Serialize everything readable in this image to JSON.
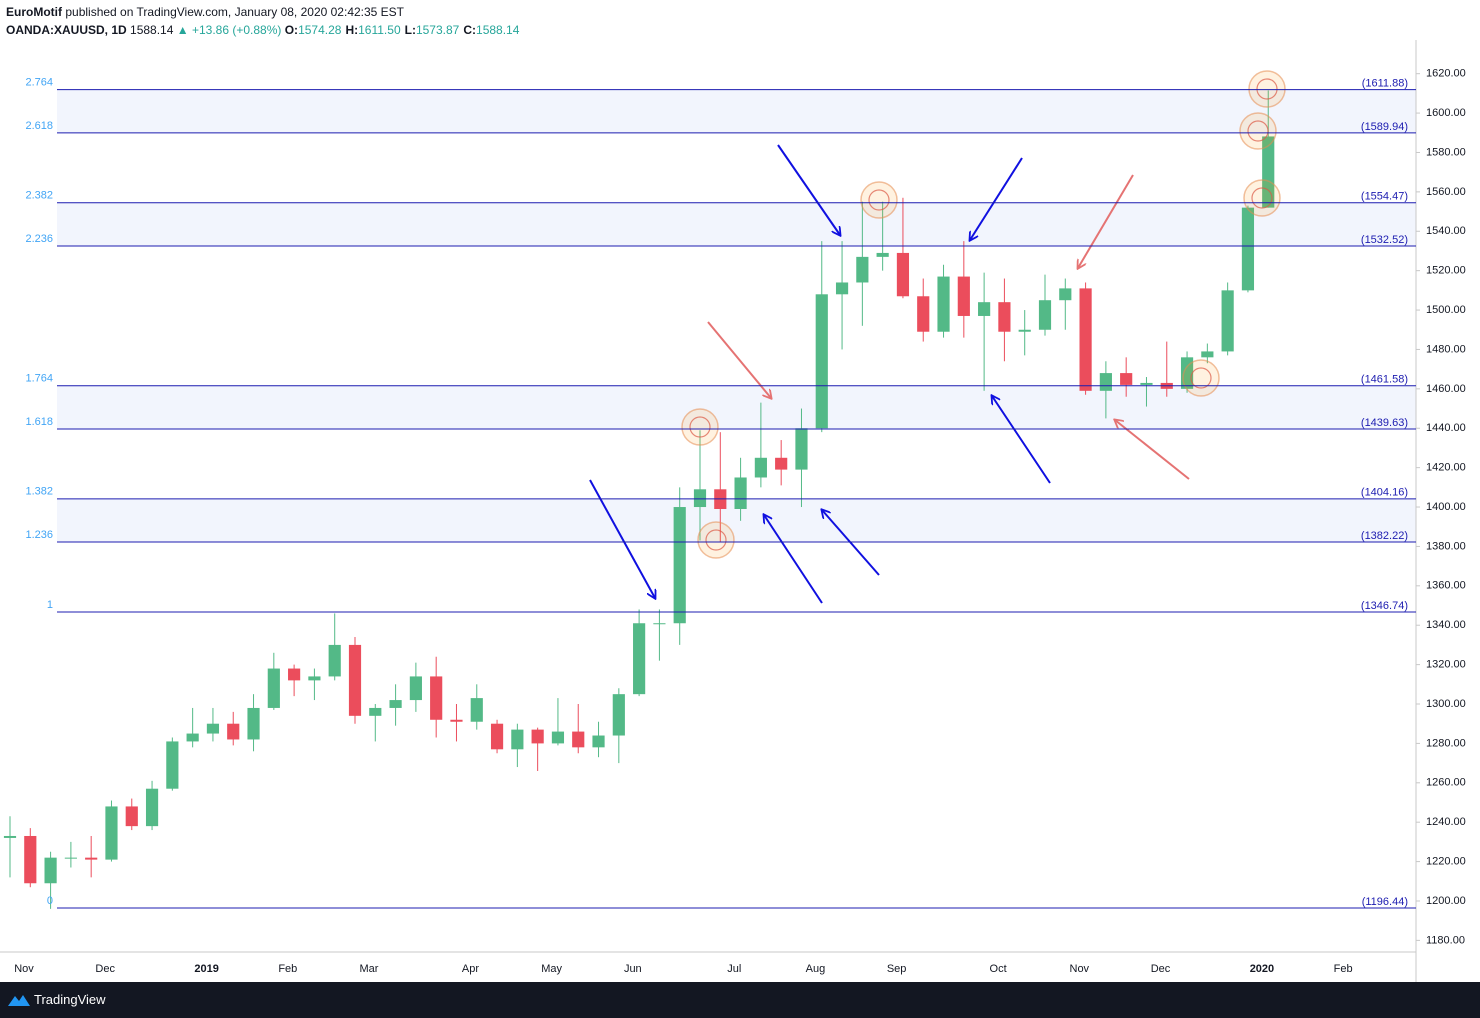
{
  "header": {
    "author": "EuroMotif",
    "published": "published on TradingView.com, January 08, 2020 02:42:35 EST",
    "symbol": "OANDA:XAUUSD, 1D",
    "last": "1588.14",
    "change": "▲ +13.86 (+0.88%)",
    "ohlc": [
      {
        "key": "O:",
        "value": "1574.28"
      },
      {
        "key": "H:",
        "value": "1611.50"
      },
      {
        "key": "L:",
        "value": "1573.87"
      },
      {
        "key": "C:",
        "value": "1588.14"
      }
    ]
  },
  "chart_data": {
    "type": "candlestick",
    "up_color": "#53b987",
    "down_color": "#eb4d5c",
    "categories": [
      "Nov",
      null,
      null,
      null,
      "Dec",
      null,
      null,
      null,
      null,
      "2019",
      null,
      null,
      null,
      "Feb",
      null,
      null,
      null,
      "Mar",
      null,
      null,
      null,
      null,
      "Apr",
      null,
      null,
      null,
      "May",
      null,
      null,
      null,
      "Jun",
      null,
      null,
      null,
      null,
      "Jul",
      null,
      null,
      null,
      "Aug",
      null,
      null,
      null,
      "Sep",
      null,
      null,
      null,
      null,
      "Oct",
      null,
      null,
      null,
      "Nov",
      null,
      null,
      null,
      "Dec",
      null,
      null,
      null,
      null,
      "2020",
      null,
      null,
      null,
      "Feb",
      null,
      null,
      null
    ],
    "open": [
      1232,
      1233,
      1209,
      1222,
      1222,
      1221,
      1248,
      1238,
      1257,
      1281,
      1285,
      1290,
      1282,
      1298,
      1318,
      1312,
      1314,
      1330,
      1294,
      1298,
      1302,
      1314,
      1292,
      1291,
      1290,
      1277,
      1287,
      1280,
      1286,
      1278,
      1284,
      1305,
      1341,
      1341,
      1400,
      1409,
      1399,
      1415,
      1425,
      1419,
      1440,
      1508,
      1514,
      1527,
      1529,
      1507,
      1489,
      1517,
      1497,
      1504,
      1489,
      1490,
      1505,
      1511,
      1459,
      1468,
      1462,
      1463,
      1460,
      1476,
      1479,
      1510,
      1552,
      null,
      null,
      null,
      null,
      null,
      null
    ],
    "high": [
      1243,
      1237,
      1225,
      1230,
      1233,
      1251,
      1252,
      1261,
      1283,
      1298,
      1298,
      1296,
      1305,
      1326,
      1320,
      1318,
      1346,
      1334,
      1300,
      1310,
      1321,
      1324,
      1300,
      1310,
      1292,
      1290,
      1288,
      1303,
      1300,
      1291,
      1308,
      1348,
      1348,
      1410,
      1439,
      1438,
      1425,
      1453,
      1434,
      1450,
      1535,
      1535,
      1555,
      1555,
      1557,
      1516,
      1523,
      1535,
      1519,
      1516,
      1500,
      1518,
      1516,
      1514,
      1474,
      1476,
      1466,
      1484,
      1479,
      1483,
      1514,
      1553,
      1611.5,
      null,
      null,
      null,
      null,
      null,
      null
    ],
    "low": [
      1212,
      1207,
      1196,
      1217,
      1212,
      1220,
      1236,
      1236,
      1256,
      1278,
      1281,
      1279,
      1276,
      1297,
      1304,
      1302,
      1312,
      1290,
      1281,
      1289,
      1296,
      1283,
      1281,
      1287,
      1275,
      1268,
      1266,
      1279,
      1275,
      1273,
      1270,
      1304,
      1322,
      1330,
      1383,
      1382,
      1393,
      1410,
      1411,
      1400,
      1438,
      1480,
      1492,
      1520,
      1506,
      1484,
      1486,
      1486,
      1459,
      1474,
      1477,
      1487,
      1490,
      1457,
      1445,
      1456,
      1451,
      1456,
      1458,
      1473,
      1477,
      1509,
      1552,
      null,
      null,
      null,
      null,
      null,
      null
    ],
    "close": [
      1233,
      1209,
      1222,
      1222,
      1221,
      1248,
      1238,
      1257,
      1281,
      1285,
      1290,
      1282,
      1298,
      1318,
      1312,
      1314,
      1330,
      1294,
      1298,
      1302,
      1314,
      1292,
      1291,
      1303,
      1277,
      1287,
      1280,
      1286,
      1278,
      1284,
      1305,
      1341,
      1341,
      1400,
      1409,
      1399,
      1415,
      1425,
      1419,
      1440,
      1508,
      1514,
      1527,
      1529,
      1507,
      1489,
      1517,
      1497,
      1504,
      1489,
      1490,
      1505,
      1511,
      1459,
      1468,
      1462,
      1463,
      1460,
      1476,
      1479,
      1510,
      1552,
      1588.14,
      null,
      null,
      null,
      null,
      null,
      null
    ],
    "ylim": [
      1174.1,
      1637.1
    ],
    "yticks": [
      {
        "value": 1180,
        "label": "1180.00"
      },
      {
        "value": 1200,
        "label": "1200.00"
      },
      {
        "value": 1220,
        "label": "1220.00"
      },
      {
        "value": 1240,
        "label": "1240.00"
      },
      {
        "value": 1260,
        "label": "1260.00"
      },
      {
        "value": 1280,
        "label": "1280.00"
      },
      {
        "value": 1300,
        "label": "1300.00"
      },
      {
        "value": 1320,
        "label": "1320.00"
      },
      {
        "value": 1340,
        "label": "1340.00"
      },
      {
        "value": 1360,
        "label": "1360.00"
      },
      {
        "value": 1380,
        "label": "1380.00"
      },
      {
        "value": 1400,
        "label": "1400.00"
      },
      {
        "value": 1420,
        "label": "1420.00"
      },
      {
        "value": 1440,
        "label": "1440.00"
      },
      {
        "value": 1460,
        "label": "1460.00"
      },
      {
        "value": 1480,
        "label": "1480.00"
      },
      {
        "value": 1500,
        "label": "1500.00"
      },
      {
        "value": 1520,
        "label": "1520.00"
      },
      {
        "value": 1540,
        "label": "1540.00"
      },
      {
        "value": 1560,
        "label": "1560.00"
      },
      {
        "value": 1580,
        "label": "1580.00"
      },
      {
        "value": 1600,
        "label": "1600.00"
      },
      {
        "value": 1620,
        "label": "1620.00"
      }
    ],
    "fib_color": "#1c1cb0",
    "fib_ratio_color": "#42a5f5",
    "fib_band_color": "#f2f5fd",
    "fib_levels": [
      {
        "ratio": "2.764",
        "price": {
          "value": 1611.88,
          "label": "(1611.88)"
        }
      },
      {
        "ratio": "2.618",
        "price": {
          "value": 1589.94,
          "label": "(1589.94)"
        }
      },
      {
        "ratio": "2.382",
        "price": {
          "value": 1554.47,
          "label": "(1554.47)"
        }
      },
      {
        "ratio": "2.236",
        "price": {
          "value": 1532.52,
          "label": "(1532.52)"
        }
      },
      {
        "ratio": "1.764",
        "price": {
          "value": 1461.58,
          "label": "(1461.58)"
        }
      },
      {
        "ratio": "1.618",
        "price": {
          "value": 1439.63,
          "label": "(1439.63)"
        }
      },
      {
        "ratio": "1.382",
        "price": {
          "value": 1404.16,
          "label": "(1404.16)"
        }
      },
      {
        "ratio": "1.236",
        "price": {
          "value": 1382.22,
          "label": "(1382.22)"
        }
      },
      {
        "ratio": "1",
        "price": {
          "value": 1346.74,
          "label": "(1346.74)"
        }
      },
      {
        "ratio": "0",
        "price": {
          "value": 1196.44,
          "label": "(1196.44)"
        }
      }
    ]
  },
  "footer": {
    "brand": "TradingView"
  }
}
